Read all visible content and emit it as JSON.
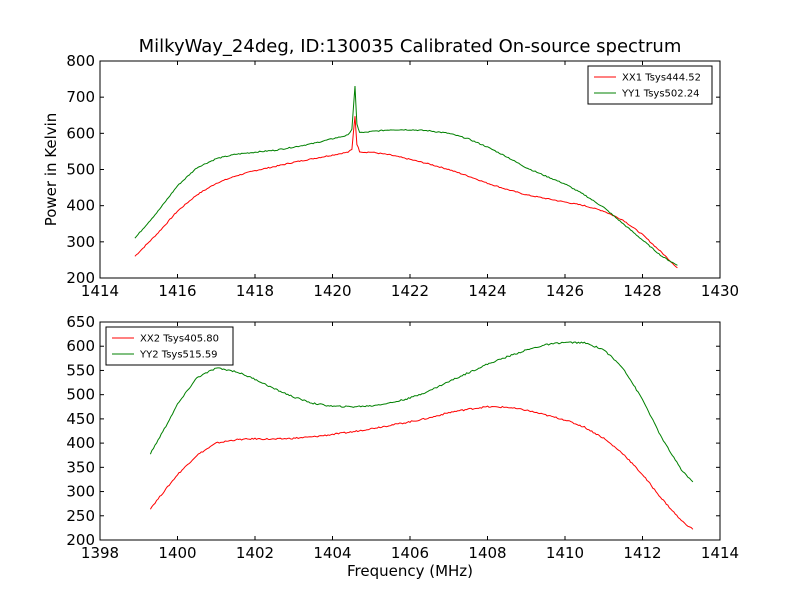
{
  "figure_title": "MilkyWay_24deg, ID:130035 Calibrated On-source spectrum",
  "chart_data": [
    {
      "type": "line",
      "title": "MilkyWay_24deg, ID:130035 Calibrated On-source spectrum",
      "xlabel": "",
      "ylabel": "Power in Kelvin",
      "xlim": [
        1414,
        1430
      ],
      "ylim": [
        200,
        800
      ],
      "xticks": [
        1414,
        1416,
        1418,
        1420,
        1422,
        1424,
        1426,
        1428,
        1430
      ],
      "yticks": [
        200,
        300,
        400,
        500,
        600,
        700,
        800
      ],
      "grid": false,
      "legend_position": "top-right",
      "series": [
        {
          "name": "XX1 Tsys444.52",
          "color": "#ff0000",
          "x": [
            1414.9,
            1415.5,
            1416.0,
            1416.5,
            1417.0,
            1417.5,
            1418.0,
            1418.5,
            1419.0,
            1419.5,
            1420.0,
            1420.4,
            1420.5,
            1420.58,
            1420.63,
            1420.7,
            1420.8,
            1421.0,
            1421.5,
            1422.0,
            1422.5,
            1423.0,
            1423.5,
            1424.0,
            1424.5,
            1425.0,
            1425.5,
            1426.0,
            1426.5,
            1427.0,
            1427.5,
            1428.0,
            1428.5,
            1428.9
          ],
          "y": [
            260,
            325,
            385,
            430,
            462,
            482,
            497,
            508,
            520,
            530,
            540,
            548,
            555,
            648,
            570,
            550,
            548,
            548,
            540,
            528,
            515,
            500,
            482,
            462,
            445,
            430,
            420,
            410,
            400,
            385,
            360,
            320,
            270,
            228
          ]
        },
        {
          "name": "YY1 Tsys502.24",
          "color": "#008000",
          "x": [
            1414.9,
            1415.5,
            1416.0,
            1416.5,
            1417.0,
            1417.5,
            1418.0,
            1418.5,
            1419.0,
            1419.5,
            1420.0,
            1420.4,
            1420.5,
            1420.58,
            1420.63,
            1420.7,
            1420.8,
            1421.0,
            1421.5,
            1422.0,
            1422.5,
            1423.0,
            1423.5,
            1424.0,
            1424.5,
            1425.0,
            1425.5,
            1426.0,
            1426.5,
            1427.0,
            1427.5,
            1428.0,
            1428.5,
            1428.9
          ],
          "y": [
            310,
            385,
            455,
            505,
            530,
            542,
            548,
            553,
            562,
            572,
            585,
            595,
            612,
            730,
            625,
            603,
            602,
            605,
            610,
            610,
            607,
            600,
            585,
            562,
            535,
            505,
            482,
            460,
            430,
            395,
            350,
            305,
            260,
            235
          ]
        }
      ]
    },
    {
      "type": "line",
      "title": "",
      "xlabel": "Frequency (MHz)",
      "ylabel": "",
      "xlim": [
        1398,
        1414
      ],
      "ylim": [
        200,
        650
      ],
      "xticks": [
        1398,
        1400,
        1402,
        1404,
        1406,
        1408,
        1410,
        1412,
        1414
      ],
      "yticks": [
        200,
        250,
        300,
        350,
        400,
        450,
        500,
        550,
        600,
        650
      ],
      "grid": false,
      "legend_position": "top-left",
      "series": [
        {
          "name": "XX2 Tsys405.80",
          "color": "#ff0000",
          "x": [
            1399.3,
            1399.7,
            1400.0,
            1400.5,
            1401.0,
            1401.5,
            1402.0,
            1402.5,
            1403.0,
            1403.5,
            1404.0,
            1404.5,
            1405.0,
            1405.5,
            1406.0,
            1406.5,
            1407.0,
            1407.5,
            1408.0,
            1408.5,
            1409.0,
            1409.5,
            1410.0,
            1410.5,
            1411.0,
            1411.5,
            1412.0,
            1412.5,
            1413.0,
            1413.3
          ],
          "y": [
            265,
            305,
            335,
            375,
            400,
            407,
            409,
            408,
            410,
            413,
            418,
            423,
            430,
            437,
            444,
            452,
            463,
            470,
            475,
            474,
            468,
            458,
            448,
            433,
            410,
            378,
            335,
            285,
            240,
            222
          ]
        },
        {
          "name": "YY2 Tsys515.59",
          "color": "#008000",
          "x": [
            1399.3,
            1399.7,
            1400.0,
            1400.5,
            1401.0,
            1401.5,
            1402.0,
            1402.5,
            1403.0,
            1403.5,
            1404.0,
            1404.5,
            1405.0,
            1405.5,
            1406.0,
            1406.5,
            1407.0,
            1407.5,
            1408.0,
            1408.5,
            1409.0,
            1409.5,
            1410.0,
            1410.5,
            1411.0,
            1411.5,
            1412.0,
            1412.5,
            1413.0,
            1413.3
          ],
          "y": [
            378,
            435,
            480,
            535,
            555,
            548,
            532,
            512,
            495,
            482,
            476,
            475,
            477,
            483,
            493,
            508,
            527,
            545,
            563,
            578,
            592,
            603,
            608,
            607,
            593,
            555,
            490,
            410,
            345,
            320
          ]
        }
      ]
    }
  ]
}
